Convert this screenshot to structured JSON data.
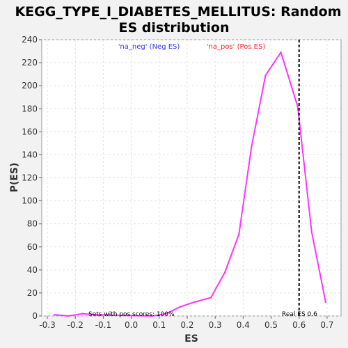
{
  "chart_data": {
    "type": "line",
    "title_line1": "KEGG_TYPE_I_DIABETES_MELLITUS: Random",
    "title_line2": "ES distribution",
    "xlabel": "ES",
    "ylabel": "P(ES)",
    "xlim": [
      -0.32,
      0.75
    ],
    "ylim": [
      0,
      240
    ],
    "x_ticks": [
      -0.3,
      -0.2,
      -0.1,
      0.0,
      0.1,
      0.2,
      0.3,
      0.4,
      0.5,
      0.6,
      0.7
    ],
    "y_ticks": [
      0,
      20,
      40,
      60,
      80,
      100,
      120,
      140,
      160,
      180,
      200,
      220,
      240
    ],
    "grid": true,
    "legend": [
      {
        "label": "'na_neg' (Neg ES)",
        "color": "#3333ff"
      },
      {
        "label": "'na_pos' (Pos ES)",
        "color": "#ff2222"
      }
    ],
    "series": [
      {
        "color": "#ff33ff",
        "x": [
          -0.275,
          -0.225,
          -0.175,
          -0.125,
          0.075,
          0.125,
          0.175,
          0.225,
          0.285,
          0.335,
          0.385,
          0.43,
          0.48,
          0.535,
          0.595,
          0.645,
          0.695
        ],
        "y": [
          1,
          0,
          2,
          1,
          0,
          2,
          8,
          12,
          16,
          38,
          71,
          147,
          209,
          229,
          182,
          73,
          12
        ]
      }
    ],
    "real_es": 0.6,
    "annotations": {
      "pos_scores": "Sets with pos scores: 100%",
      "real_es_label": "Real ES 0.6"
    }
  }
}
